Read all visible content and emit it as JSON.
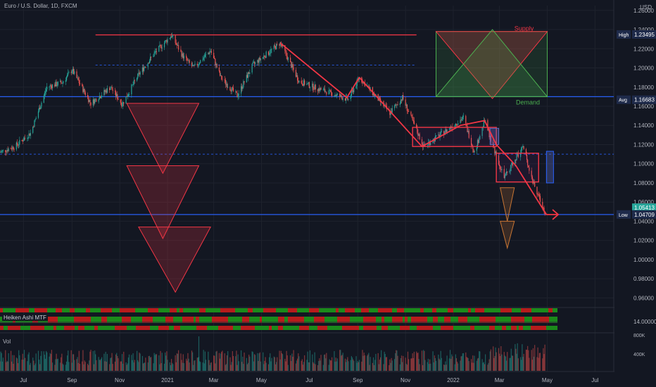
{
  "header": {
    "title": "Euro / U.S. Dollar, 1D, FXCM",
    "currency": "USD"
  },
  "indicators": {
    "heiken_ashi_label": "Heiken Ashi MTF",
    "volume_label": "Vol"
  },
  "annotations": {
    "supply": "Supply",
    "demand": "Demand"
  },
  "colors": {
    "background": "#131722",
    "bull": "#26a69a",
    "bear": "#ef5350",
    "horizontal_line": "#2962ff",
    "drawing_red": "#f23645",
    "pattern_red": "#f23645",
    "pattern_orange": "#c87533",
    "supply_text": "#f23645",
    "demand_text": "#4caf50"
  },
  "chart_data": {
    "type": "candlestick",
    "symbol": "Euro / U.S. Dollar",
    "timeframe": "1D",
    "source": "FXCM",
    "x_range": [
      "2020-06-01",
      "2022-07-25"
    ],
    "x_ticks": [
      "Jul",
      "Sep",
      "Nov",
      "2021",
      "Mar",
      "May",
      "Jul",
      "Sep",
      "Nov",
      "2022",
      "Mar",
      "May",
      "Jul"
    ],
    "x_tick_dates": [
      "2020-07-01",
      "2020-09-01",
      "2020-11-01",
      "2021-01-01",
      "2021-03-01",
      "2021-05-01",
      "2021-07-01",
      "2021-09-01",
      "2021-11-01",
      "2022-01-01",
      "2022-03-01",
      "2022-05-01",
      "2022-07-01"
    ],
    "y_range": [
      0.95,
      1.265
    ],
    "y_ticks": [
      "1.26000",
      "1.24000",
      "1.22000",
      "1.20000",
      "1.18000",
      "1.16000",
      "1.14000",
      "1.12000",
      "1.10000",
      "1.08000",
      "1.06000",
      "1.04000",
      "1.02000",
      "1.00000",
      "0.98000",
      "0.96000"
    ],
    "y_tick_values": [
      1.26,
      1.24,
      1.22,
      1.2,
      1.18,
      1.16,
      1.14,
      1.12,
      1.1,
      1.08,
      1.06,
      1.04,
      1.02,
      1.0,
      0.98,
      0.96
    ],
    "markers": [
      {
        "label": "High",
        "value_text": "1.23495",
        "value": 1.23495
      },
      {
        "label": "Avg",
        "value_text": "1.16683",
        "value": 1.16683
      },
      {
        "label": "",
        "value_text": "1.05413",
        "value": 1.05413
      },
      {
        "label": "Low",
        "value_text": "1.04709",
        "value": 1.04709
      }
    ],
    "price_path": [
      [
        "2020-06-01",
        1.112
      ],
      [
        "2020-06-20",
        1.118
      ],
      [
        "2020-07-10",
        1.132
      ],
      [
        "2020-07-31",
        1.18
      ],
      [
        "2020-08-20",
        1.185
      ],
      [
        "2020-09-01",
        1.198
      ],
      [
        "2020-09-25",
        1.163
      ],
      [
        "2020-10-20",
        1.18
      ],
      [
        "2020-11-04",
        1.162
      ],
      [
        "2020-11-25",
        1.193
      ],
      [
        "2020-12-15",
        1.215
      ],
      [
        "2021-01-06",
        1.234
      ],
      [
        "2021-01-20",
        1.213
      ],
      [
        "2021-02-03",
        1.2
      ],
      [
        "2021-02-25",
        1.218
      ],
      [
        "2021-03-10",
        1.19
      ],
      [
        "2021-03-31",
        1.171
      ],
      [
        "2021-04-20",
        1.203
      ],
      [
        "2021-05-25",
        1.226
      ],
      [
        "2021-06-18",
        1.186
      ],
      [
        "2021-07-07",
        1.18
      ],
      [
        "2021-08-20",
        1.167
      ],
      [
        "2021-09-03",
        1.19
      ],
      [
        "2021-10-12",
        1.153
      ],
      [
        "2021-10-28",
        1.169
      ],
      [
        "2021-11-24",
        1.118
      ],
      [
        "2021-12-15",
        1.13
      ],
      [
        "2022-01-14",
        1.148
      ],
      [
        "2022-01-28",
        1.112
      ],
      [
        "2022-02-10",
        1.145
      ],
      [
        "2022-03-07",
        1.085
      ],
      [
        "2022-03-31",
        1.118
      ],
      [
        "2022-04-14",
        1.078
      ],
      [
        "2022-04-28",
        1.05
      ]
    ],
    "horizontal_lines": [
      {
        "value": 1.2345,
        "from": "2020-10-01",
        "to": "2021-11-15",
        "style": "solid",
        "color": "#f23645"
      },
      {
        "value": 1.203,
        "from": "2020-10-01",
        "to": "2021-11-15",
        "style": "dashed",
        "color": "#2962ff"
      },
      {
        "value": 1.17,
        "from": "2020-06-01",
        "to": "2022-07-25",
        "style": "solid",
        "color": "#2962ff"
      },
      {
        "value": 1.11,
        "from": "2020-06-01",
        "to": "2022-07-25",
        "style": "dashed",
        "color": "#2962ff"
      },
      {
        "value": 1.047,
        "from": "2020-06-01",
        "to": "2022-07-25",
        "style": "solid",
        "color": "#2962ff"
      }
    ]
  }
}
